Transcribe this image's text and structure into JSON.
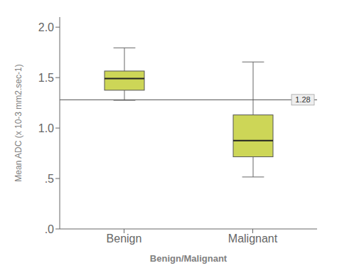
{
  "chart_data": {
    "type": "box",
    "categories": [
      "Benign",
      "Malignant"
    ],
    "xlabel": "Benign/Malignant",
    "ylabel": "Mean ADC (x 10-3 mm2.sec-1)",
    "q1": [
      1.375,
      0.715
    ],
    "median": [
      1.49,
      0.875
    ],
    "q3": [
      1.565,
      1.13
    ],
    "whisker_low": [
      1.275,
      0.515
    ],
    "whisker_high": [
      1.795,
      1.655
    ],
    "color": "#cdd657",
    "ylim": [
      0,
      2.1
    ],
    "yticks": [
      {
        "value": 0.0,
        "label": ".0"
      },
      {
        "value": 0.5,
        "label": ".5"
      },
      {
        "value": 1.0,
        "label": "1.0"
      },
      1.5,
      {
        "value": 2.0,
        "label": "2.0"
      }
    ],
    "reference_lines": [
      {
        "value": 1.28,
        "label": "1.28"
      }
    ],
    "grid": false
  }
}
